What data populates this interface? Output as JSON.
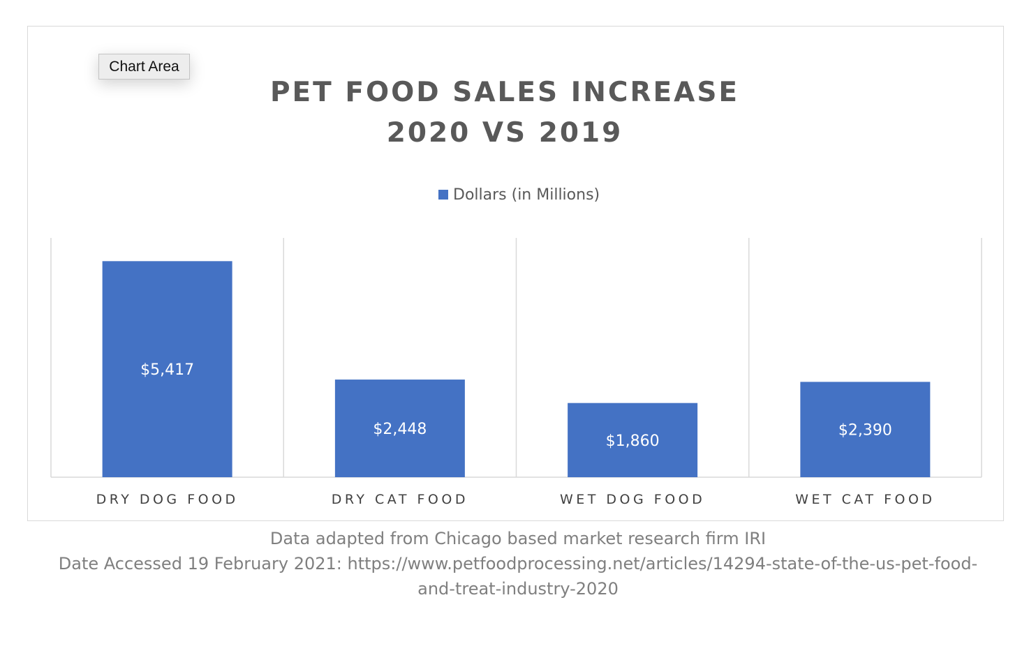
{
  "tooltip": "Chart Area",
  "chart_data": {
    "type": "bar",
    "title_lines": [
      "PET FOOD SALES INCREASE",
      "2020 VS 2019"
    ],
    "categories": [
      "DRY DOG FOOD",
      "DRY CAT FOOD",
      "WET DOG FOOD",
      "WET CAT FOOD"
    ],
    "series": [
      {
        "name": "Dollars (in Millions)",
        "values": [
          5417,
          2448,
          1860,
          2390
        ],
        "color": "#4472c4"
      }
    ],
    "data_labels": [
      "$5,417",
      "$2,448",
      "$1,860",
      "$2,390"
    ],
    "ylim": [
      0,
      6000
    ],
    "legend": "top",
    "grid": "vertical category separators",
    "source_lines": [
      "Data adapted from Chicago based market research firm IRI",
      "Date Accessed 19 February 2021: https://www.petfoodprocessing.net/articles/14294-state-of-the-us-pet-food-",
      "and-treat-industry-2020"
    ]
  }
}
